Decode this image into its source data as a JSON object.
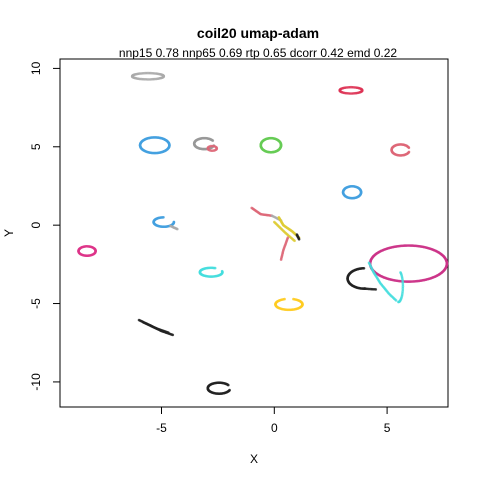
{
  "chart_data": {
    "type": "scatter",
    "title": "coil20 umap-adam",
    "subtitle": "nnp15 0.78 nnp65 0.69 rtp 0.65 dcorr 0.42 emd 0.22",
    "xlabel": "X",
    "ylabel": "Y",
    "xlim": [
      -9.5,
      7.7
    ],
    "ylim": [
      -11.6,
      10.6
    ],
    "xticks": [
      -5,
      0,
      5
    ],
    "yticks": [
      10,
      5,
      0,
      -5,
      -10
    ],
    "grid": false,
    "legend": "none",
    "series": [
      {
        "color": "#aaaaaa",
        "kind": "arc",
        "cx": -5.6,
        "cy": 9.5,
        "rx": 0.7,
        "ry": 0.2,
        "t0": 0,
        "t1": 6.28,
        "n": 70
      },
      {
        "color": "#dd3355",
        "kind": "arc",
        "cx": 3.4,
        "cy": 8.6,
        "rx": 0.5,
        "ry": 0.2,
        "t0": 0,
        "t1": 6.28,
        "n": 50
      },
      {
        "color": "#44a0e0",
        "kind": "arc",
        "cx": -5.3,
        "cy": 5.1,
        "rx": 0.65,
        "ry": 0.5,
        "t0": 0,
        "t1": 6.28,
        "n": 120
      },
      {
        "color": "#999999",
        "kind": "arc",
        "cx": -3.1,
        "cy": 5.2,
        "rx": 0.45,
        "ry": 0.35,
        "t0": 0.6,
        "t1": 6.0,
        "n": 80
      },
      {
        "color": "#dd6677",
        "kind": "arc",
        "cx": -2.75,
        "cy": 4.9,
        "rx": 0.2,
        "ry": 0.15,
        "t0": 0,
        "t1": 6.28,
        "n": 20
      },
      {
        "color": "#66cc55",
        "kind": "arc",
        "cx": -0.15,
        "cy": 5.1,
        "rx": 0.45,
        "ry": 0.45,
        "t0": 0,
        "t1": 6.28,
        "n": 100
      },
      {
        "color": "#dd6677",
        "kind": "arc",
        "cx": 5.6,
        "cy": 4.8,
        "rx": 0.4,
        "ry": 0.35,
        "t0": 0.4,
        "t1": 6.0,
        "n": 60
      },
      {
        "color": "#44a0e0",
        "kind": "arc",
        "cx": 3.45,
        "cy": 2.1,
        "rx": 0.4,
        "ry": 0.38,
        "t0": 0,
        "t1": 6.28,
        "n": 70
      },
      {
        "color": "#44a0e0",
        "kind": "arc",
        "cx": -4.9,
        "cy": 0.2,
        "rx": 0.45,
        "ry": 0.3,
        "t0": 1.6,
        "t1": 6.4,
        "n": 60
      },
      {
        "color": "#aaaaaa",
        "kind": "line",
        "pts": [
          [
            -4.6,
            -0.05
          ],
          [
            -4.3,
            -0.25
          ]
        ],
        "n": 12
      },
      {
        "color": "#dd3388",
        "kind": "arc",
        "cx": -8.3,
        "cy": -1.65,
        "rx": 0.38,
        "ry": 0.3,
        "t0": 0,
        "t1": 6.28,
        "n": 60
      },
      {
        "color": "#dd6677",
        "kind": "line",
        "pts": [
          [
            -1.0,
            1.1
          ],
          [
            -0.6,
            0.7
          ],
          [
            -0.1,
            0.6
          ]
        ],
        "n": 25
      },
      {
        "color": "#aaaaaa",
        "kind": "line",
        "pts": [
          [
            -0.1,
            0.6
          ],
          [
            0.3,
            0.3
          ]
        ],
        "n": 10
      },
      {
        "color": "#ddcc33",
        "kind": "line",
        "pts": [
          [
            0.2,
            0.5
          ],
          [
            0.4,
            0.0
          ],
          [
            0.8,
            -0.4
          ],
          [
            1.1,
            -0.8
          ]
        ],
        "n": 40
      },
      {
        "color": "#ddcc33",
        "kind": "line",
        "pts": [
          [
            0.0,
            0.2
          ],
          [
            0.5,
            -0.5
          ],
          [
            0.9,
            -1.0
          ]
        ],
        "n": 25
      },
      {
        "color": "#222222",
        "kind": "line",
        "pts": [
          [
            1.0,
            -0.6
          ],
          [
            1.1,
            -0.9
          ]
        ],
        "n": 8
      },
      {
        "color": "#dd6677",
        "kind": "line",
        "pts": [
          [
            0.6,
            -0.8
          ],
          [
            0.4,
            -1.6
          ],
          [
            0.3,
            -2.2
          ]
        ],
        "n": 20
      },
      {
        "color": "#cc3388",
        "kind": "arc",
        "cx": 5.95,
        "cy": -2.45,
        "rx": 1.7,
        "ry": 1.15,
        "t0": 0,
        "t1": 6.28,
        "n": 240
      },
      {
        "color": "#44dddd",
        "kind": "line",
        "pts": [
          [
            4.2,
            -2.4
          ],
          [
            4.4,
            -3.0
          ],
          [
            4.7,
            -3.7
          ],
          [
            5.1,
            -4.4
          ],
          [
            5.4,
            -4.8
          ]
        ],
        "n": 40
      },
      {
        "color": "#44dddd",
        "kind": "arc",
        "cx": 5.5,
        "cy": -3.9,
        "rx": 0.2,
        "ry": 1.0,
        "t0": -1.57,
        "t1": 1.2,
        "n": 25
      },
      {
        "color": "#222222",
        "kind": "arc",
        "cx": 4.0,
        "cy": -3.4,
        "rx": 0.75,
        "ry": 0.65,
        "t0": 1.6,
        "t1": 4.8,
        "n": 70
      },
      {
        "color": "#222222",
        "kind": "line",
        "pts": [
          [
            4.0,
            -4.05
          ],
          [
            4.5,
            -4.1
          ]
        ],
        "n": 10
      },
      {
        "color": "#44dddd",
        "kind": "arc",
        "cx": -2.8,
        "cy": -3.0,
        "rx": 0.5,
        "ry": 0.28,
        "t0": 1.2,
        "t1": 6.6,
        "n": 60
      },
      {
        "color": "#ffcc22",
        "kind": "arc",
        "cx": 0.65,
        "cy": -5.05,
        "rx": 0.6,
        "ry": 0.35,
        "t0": 1.9,
        "t1": 7.6,
        "n": 70
      },
      {
        "color": "#222222",
        "kind": "line",
        "pts": [
          [
            -6.0,
            -6.05
          ],
          [
            -5.5,
            -6.4
          ],
          [
            -5.0,
            -6.75
          ],
          [
            -4.5,
            -7.0
          ]
        ],
        "n": 40
      },
      {
        "color": "#222222",
        "kind": "line",
        "pts": [
          [
            -5.8,
            -6.2
          ],
          [
            -5.2,
            -6.6
          ],
          [
            -4.7,
            -6.85
          ]
        ],
        "n": 25
      },
      {
        "color": "#222222",
        "kind": "arc",
        "cx": -2.45,
        "cy": -10.4,
        "rx": 0.5,
        "ry": 0.35,
        "t0": 0.6,
        "t1": 6.0,
        "n": 70
      }
    ]
  }
}
